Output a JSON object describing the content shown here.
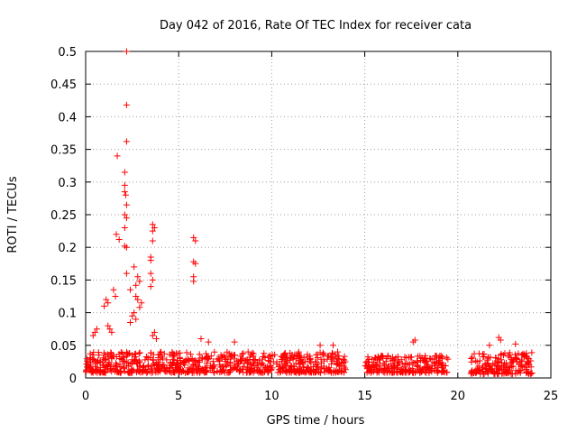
{
  "chart_data": {
    "type": "scatter",
    "title": "Day 042 of 2016, Rate Of TEC Index for receiver cata",
    "xlabel": "GPS time / hours",
    "ylabel": "ROTI / TECUs",
    "xlim": [
      0,
      25
    ],
    "ylim": [
      0,
      0.5
    ],
    "xticks": [
      0,
      5,
      10,
      15,
      20,
      25
    ],
    "xtick_labels": [
      "0",
      "5",
      "10",
      "15",
      "20",
      "25"
    ],
    "yticks": [
      0,
      0.05,
      0.1,
      0.15,
      0.2,
      0.25,
      0.3,
      0.35,
      0.4,
      0.45,
      0.5
    ],
    "ytick_labels": [
      "0",
      "0.05",
      "0.1",
      "0.15",
      "0.2",
      "0.25",
      "0.3",
      "0.35",
      "0.4",
      "0.45",
      "0.5"
    ],
    "grid": true,
    "marker": "+",
    "marker_color": "#ff0000",
    "series": [
      {
        "name": "background-band",
        "segments": [
          {
            "x_start": 0.0,
            "x_end": 14.0,
            "y_low": 0.008,
            "y_high": 0.04,
            "density": 55
          },
          {
            "x_start": 15.0,
            "x_end": 19.5,
            "y_low": 0.008,
            "y_high": 0.035,
            "density": 55
          },
          {
            "x_start": 20.7,
            "x_end": 24.0,
            "y_low": 0.006,
            "y_high": 0.04,
            "density": 55
          }
        ]
      },
      {
        "name": "notable-points",
        "points": [
          [
            2.2,
            0.5
          ],
          [
            2.2,
            0.418
          ],
          [
            2.2,
            0.362
          ],
          [
            1.7,
            0.34
          ],
          [
            2.1,
            0.315
          ],
          [
            2.1,
            0.295
          ],
          [
            2.1,
            0.285
          ],
          [
            2.15,
            0.28
          ],
          [
            2.2,
            0.265
          ],
          [
            2.1,
            0.25
          ],
          [
            2.2,
            0.245
          ],
          [
            2.1,
            0.23
          ],
          [
            2.1,
            0.202
          ],
          [
            2.2,
            0.2
          ],
          [
            1.65,
            0.22
          ],
          [
            1.8,
            0.212
          ],
          [
            2.6,
            0.17
          ],
          [
            2.2,
            0.16
          ],
          [
            2.4,
            0.135
          ],
          [
            2.8,
            0.155
          ],
          [
            2.9,
            0.148
          ],
          [
            2.7,
            0.142
          ],
          [
            3.6,
            0.235
          ],
          [
            3.7,
            0.23
          ],
          [
            3.6,
            0.225
          ],
          [
            3.6,
            0.21
          ],
          [
            3.5,
            0.185
          ],
          [
            3.5,
            0.18
          ],
          [
            3.5,
            0.16
          ],
          [
            3.6,
            0.15
          ],
          [
            3.5,
            0.14
          ],
          [
            5.8,
            0.215
          ],
          [
            5.9,
            0.21
          ],
          [
            5.8,
            0.178
          ],
          [
            5.9,
            0.175
          ],
          [
            5.8,
            0.155
          ],
          [
            5.8,
            0.148
          ],
          [
            1.1,
            0.12
          ],
          [
            1.2,
            0.115
          ],
          [
            1.0,
            0.11
          ],
          [
            1.5,
            0.135
          ],
          [
            1.6,
            0.125
          ],
          [
            2.7,
            0.125
          ],
          [
            2.8,
            0.12
          ],
          [
            3.0,
            0.115
          ],
          [
            2.9,
            0.108
          ],
          [
            2.6,
            0.1
          ],
          [
            2.5,
            0.095
          ],
          [
            2.7,
            0.09
          ],
          [
            2.4,
            0.085
          ],
          [
            0.6,
            0.075
          ],
          [
            0.5,
            0.07
          ],
          [
            0.4,
            0.065
          ],
          [
            1.2,
            0.08
          ],
          [
            1.3,
            0.075
          ],
          [
            1.4,
            0.07
          ],
          [
            3.6,
            0.065
          ],
          [
            3.7,
            0.07
          ],
          [
            3.8,
            0.06
          ],
          [
            6.2,
            0.06
          ],
          [
            6.6,
            0.055
          ],
          [
            8.0,
            0.055
          ],
          [
            12.6,
            0.05
          ],
          [
            13.3,
            0.05
          ],
          [
            17.7,
            0.058
          ],
          [
            17.6,
            0.055
          ],
          [
            22.2,
            0.062
          ],
          [
            22.3,
            0.058
          ],
          [
            23.1,
            0.052
          ],
          [
            21.7,
            0.05
          ]
        ]
      }
    ]
  }
}
